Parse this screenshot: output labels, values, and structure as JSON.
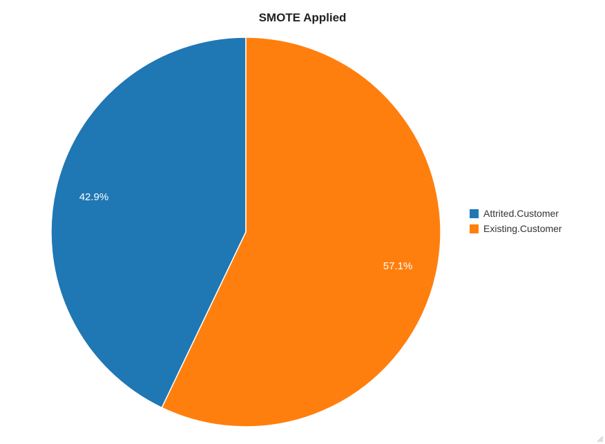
{
  "chart_data": {
    "type": "pie",
    "title": "SMOTE Applied",
    "categories": [
      "Attrited.Customer",
      "Existing.Customer"
    ],
    "values": [
      42.9,
      57.1
    ],
    "value_labels": [
      "42.9%",
      "57.1%"
    ],
    "colors": [
      "#1f77b4",
      "#ff7f0e"
    ],
    "legend_position": "right"
  },
  "legend": {
    "items": [
      {
        "label": "Attrited.Customer",
        "color": "#1f77b4"
      },
      {
        "label": "Existing.Customer",
        "color": "#ff7f0e"
      }
    ]
  },
  "icons": {
    "resize_grip": "resize-grip-icon"
  }
}
